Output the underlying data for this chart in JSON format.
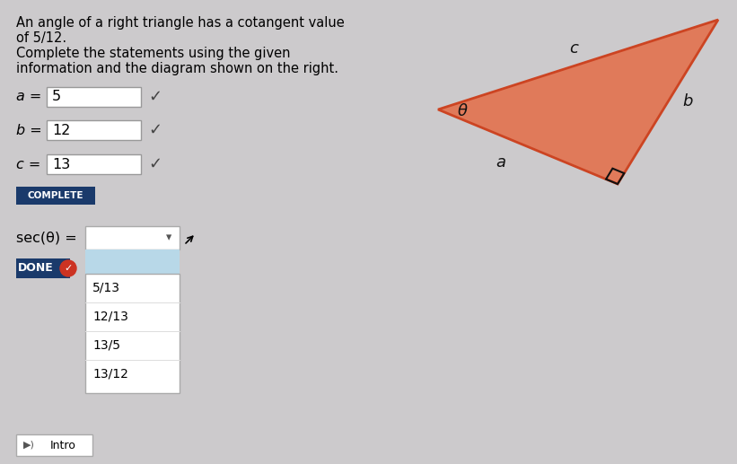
{
  "bg_color": "#cccacc",
  "title_line1": "An angle of a right triangle has a cotangent value",
  "title_line2": "of 5/12.",
  "title_line3": "Complete the statements using the given",
  "title_line4": "information and the diagram shown on the right.",
  "a_label": "a =",
  "a_value": "5",
  "b_label": "b =",
  "b_value": "12",
  "c_label": "c =",
  "c_value": "13",
  "complete_btn": "COMPLETE",
  "sec_label": "sec(θ) =",
  "done_btn": "DONE",
  "dropdown_options": [
    "5/13",
    "12/13",
    "13/5",
    "13/12"
  ],
  "triangle_fill": "#e07a5a",
  "triangle_edge": "#cc4422",
  "theta_label": "θ",
  "a_tri_label": "a",
  "b_tri_label": "b",
  "c_tri_label": "c",
  "input_box_color": "#ffffff",
  "complete_btn_color": "#1a3a6b",
  "done_btn_color": "#1a3a6b",
  "done_check_color": "#cc3322",
  "dropdown_highlight": "#b8d8e8",
  "checkmark_color": "#444444",
  "font_size_title": 10.5,
  "font_size_labels": 11.5,
  "font_size_values": 11.5
}
